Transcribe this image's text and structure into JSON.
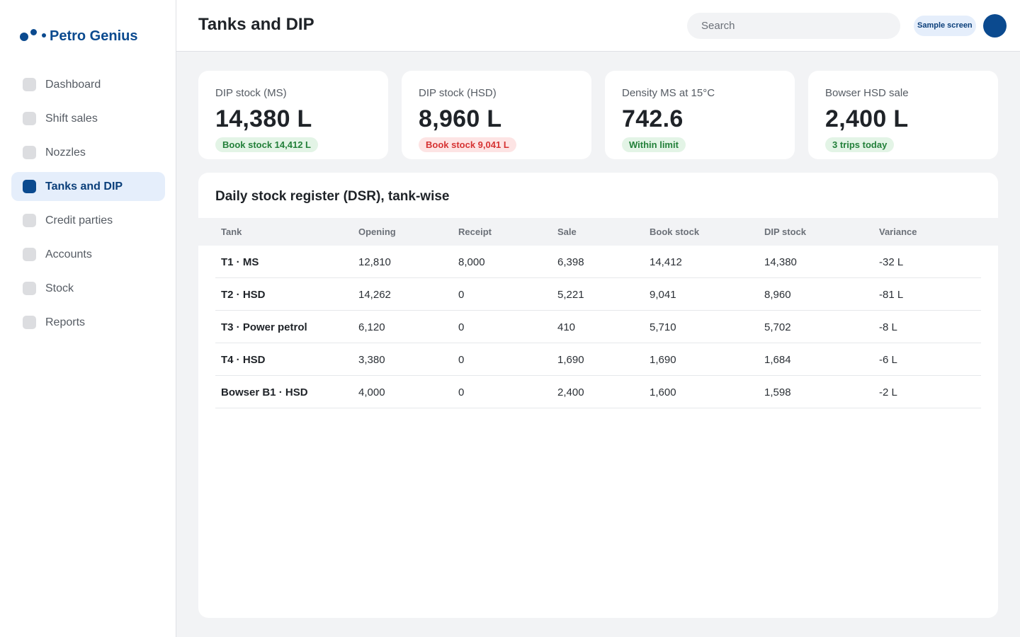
{
  "brand": {
    "name": "Petro Genius"
  },
  "sidebar": {
    "items": [
      {
        "label": "Dashboard",
        "active": false
      },
      {
        "label": "Shift sales",
        "active": false
      },
      {
        "label": "Nozzles",
        "active": false
      },
      {
        "label": "Tanks and DIP",
        "active": true
      },
      {
        "label": "Credit parties",
        "active": false
      },
      {
        "label": "Accounts",
        "active": false
      },
      {
        "label": "Stock",
        "active": false
      },
      {
        "label": "Reports",
        "active": false
      }
    ]
  },
  "header": {
    "title": "Tanks and DIP",
    "search_placeholder": "Search",
    "sample_badge": "Sample screen"
  },
  "cards": [
    {
      "label": "DIP stock (MS)",
      "value": "14,380 L",
      "badge": "Book stock 14,412 L",
      "badge_status": "green"
    },
    {
      "label": "DIP stock (HSD)",
      "value": "8,960 L",
      "badge": "Book stock 9,041 L",
      "badge_status": "red"
    },
    {
      "label": "Density MS at 15°C",
      "value": "742.6",
      "badge": "Within limit",
      "badge_status": "green"
    },
    {
      "label": "Bowser HSD sale",
      "value": "2,400 L",
      "badge": "3 trips today",
      "badge_status": "green"
    }
  ],
  "register": {
    "title": "Daily stock register (DSR), tank-wise",
    "columns": [
      "Tank",
      "Opening",
      "Receipt",
      "Sale",
      "Book stock",
      "DIP stock",
      "Variance"
    ],
    "rows": [
      [
        "T1 · MS",
        "12,810",
        "8,000",
        "6,398",
        "14,412",
        "14,380",
        "-32 L"
      ],
      [
        "T2 · HSD",
        "14,262",
        "0",
        "5,221",
        "9,041",
        "8,960",
        "-81 L"
      ],
      [
        "T3 · Power petrol",
        "6,120",
        "0",
        "410",
        "5,710",
        "5,702",
        "-8 L"
      ],
      [
        "T4 · HSD",
        "3,380",
        "0",
        "1,690",
        "1,690",
        "1,684",
        "-6 L"
      ],
      [
        "Bowser B1 · HSD",
        "4,000",
        "0",
        "2,400",
        "1,600",
        "1,598",
        "-2 L"
      ]
    ]
  },
  "colors": {
    "brand": "#0b4a8f",
    "badge_green_bg": "#e3f4e6",
    "badge_green_text": "#23803a",
    "badge_red_bg": "#fde4e4",
    "badge_red_text": "#d63333",
    "active_nav_bg": "#e5eefb"
  }
}
